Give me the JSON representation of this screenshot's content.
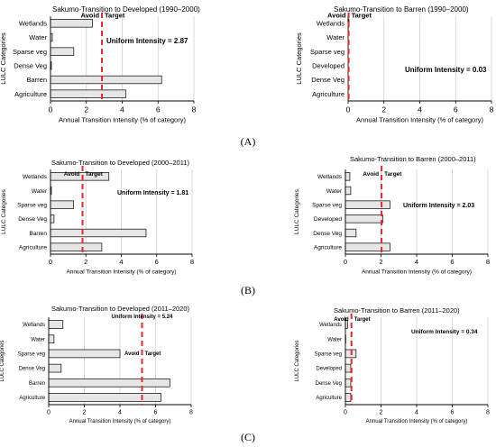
{
  "panel_labels": [
    "(A)",
    "(B)",
    "(C)"
  ],
  "chart_data": [
    {
      "type": "bar",
      "orientation": "horizontal",
      "title": "Sakumo-Transition to Developed (1990–2000)",
      "xlabel": "Annual Transition Intensity (% of category)",
      "ylabel": "LULC Categories",
      "categories": [
        "Wetlands",
        "Water",
        "Sparse veg",
        "Dense Veg",
        "Barren",
        "Agriculture"
      ],
      "values": [
        2.35,
        0.1,
        1.3,
        0.05,
        6.2,
        4.2
      ],
      "xlim": [
        0,
        8
      ],
      "xticks": [
        0,
        2,
        4,
        6,
        8
      ],
      "uniform_intensity": 2.87,
      "uniform_label": "Uniform Intensity = 2.87",
      "avoid_label": "Avoid",
      "target_label": "Target",
      "grid": true,
      "bar_color": "#e6e6e6",
      "line_color": "#e8262b"
    },
    {
      "type": "bar",
      "orientation": "horizontal",
      "title": "Sakumo-Transition to Barren (1990–2000)",
      "xlabel": "Annual Transition Intensity (% of category)",
      "ylabel": "LULC Categories",
      "categories": [
        "Wetlands",
        "Water",
        "Sparse veg",
        "Developed",
        "Dense Veg",
        "Agriculture"
      ],
      "values": [
        0.05,
        0,
        0,
        0,
        0,
        0
      ],
      "xlim": [
        0,
        8
      ],
      "xticks": [
        0,
        2,
        4,
        6,
        8
      ],
      "uniform_intensity": 0.03,
      "uniform_label": "Uniform Intensity = 0.03",
      "avoid_label": "Avoid",
      "target_label": "Target",
      "grid": true,
      "bar_color": "#e6e6e6",
      "line_color": "#e8262b"
    },
    {
      "type": "bar",
      "orientation": "horizontal",
      "title": "Sakumo-Transition to Developed (2000–2011)",
      "xlabel": "Annual Transition Intensity (% of category)",
      "ylabel": "LULC Categories",
      "categories": [
        "Wetlands",
        "Water",
        "Sparse veg",
        "Dense Veg",
        "Barren",
        "Agriculture"
      ],
      "values": [
        3.3,
        0.05,
        1.3,
        0.2,
        5.4,
        2.9
      ],
      "xlim": [
        0,
        8
      ],
      "xticks": [
        0,
        2,
        4,
        6,
        8
      ],
      "uniform_intensity": 1.81,
      "uniform_label": "Uniform Intensity = 1.81",
      "avoid_label": "Avoid",
      "target_label": "Target",
      "grid": true,
      "bar_color": "#e6e6e6",
      "line_color": "#e8262b"
    },
    {
      "type": "bar",
      "orientation": "horizontal",
      "title": "Sakumo-Transition to Barren (2000–2011)",
      "xlabel": "Annual Transition Intensity (% of category)",
      "ylabel": "LULC Categories",
      "categories": [
        "Wetlands",
        "Water",
        "Sparse veg",
        "Developed",
        "Dense Veg",
        "Agriculture"
      ],
      "values": [
        0.25,
        0.3,
        2.5,
        2.1,
        0.6,
        2.5
      ],
      "xlim": [
        0,
        8
      ],
      "xticks": [
        0,
        2,
        4,
        6,
        8
      ],
      "uniform_intensity": 2.03,
      "uniform_label": "Uniform Intensity = 2.03",
      "avoid_label": "Avoid",
      "target_label": "Target",
      "grid": true,
      "bar_color": "#e6e6e6",
      "line_color": "#e8262b"
    },
    {
      "type": "bar",
      "orientation": "horizontal",
      "title": "Sakumo-Transition to Developed (2011–2020)",
      "xlabel": "Annual Transition Intensity (% of category)",
      "ylabel": "LULC Categories",
      "categories": [
        "Wetlands",
        "Water",
        "Sparse veg",
        "Dense Veg",
        "Barren",
        "Agriculture"
      ],
      "values": [
        0.8,
        0.3,
        4.0,
        0.7,
        6.8,
        6.3
      ],
      "xlim": [
        0,
        8
      ],
      "xticks": [
        0,
        2,
        4,
        6,
        8
      ],
      "uniform_intensity": 5.24,
      "uniform_label": "Uniform Intensity = 5.24",
      "avoid_label": "Avoid",
      "target_label": "Target",
      "grid": true,
      "bar_color": "#e6e6e6",
      "line_color": "#e8262b"
    },
    {
      "type": "bar",
      "orientation": "horizontal",
      "title": "Sakumo-Transition to Barren (2011–2020)",
      "xlabel": "Annual Transition Intensity (% of category)",
      "ylabel": "LULC Categories",
      "categories": [
        "Wetlands",
        "Water",
        "Sparse veg",
        "Developed",
        "Dense Veg",
        "Agriculture"
      ],
      "values": [
        0.12,
        0.02,
        0.6,
        0.3,
        0.3,
        0.3
      ],
      "xlim": [
        0,
        8
      ],
      "xticks": [
        0,
        2,
        4,
        6,
        8
      ],
      "uniform_intensity": 0.34,
      "uniform_label": "Uniform Intensity = 0.34",
      "avoid_label": "Avoid",
      "target_label": "Target",
      "grid": true,
      "bar_color": "#e6e6e6",
      "line_color": "#e8262b"
    }
  ]
}
